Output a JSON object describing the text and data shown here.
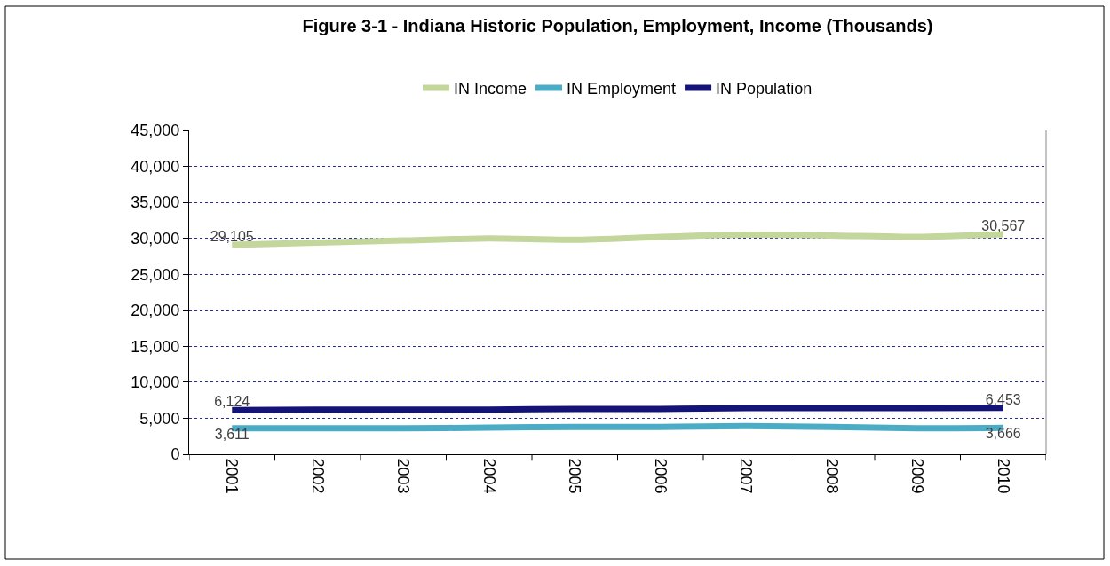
{
  "chart_data": {
    "type": "line",
    "title": "Figure 3-1 - Indiana Historic Population, Employment, Income (Thousands)",
    "categories": [
      "2001",
      "2002",
      "2003",
      "2004",
      "2005",
      "2006",
      "2007",
      "2008",
      "2009",
      "2010"
    ],
    "series": [
      {
        "name": "IN Income",
        "color": "#c3d69b",
        "values": [
          29105,
          29400,
          29700,
          30000,
          29800,
          30200,
          30500,
          30400,
          30200,
          30567
        ],
        "value_labels": [
          "29,105",
          null,
          null,
          null,
          null,
          null,
          null,
          null,
          null,
          "30,567"
        ]
      },
      {
        "name": "IN Employment",
        "color": "#4bacc6",
        "values": [
          3611,
          3600,
          3600,
          3700,
          3800,
          3800,
          3900,
          3800,
          3600,
          3666
        ],
        "value_labels": [
          "3,611",
          null,
          null,
          null,
          null,
          null,
          null,
          null,
          null,
          "3,666"
        ]
      },
      {
        "name": "IN Population",
        "color": "#141478",
        "values": [
          6124,
          6200,
          6200,
          6200,
          6300,
          6300,
          6400,
          6400,
          6400,
          6453
        ],
        "value_labels": [
          "6,124",
          null,
          null,
          null,
          null,
          null,
          null,
          null,
          null,
          "6,453"
        ]
      }
    ],
    "ylim": [
      0,
      45000
    ],
    "yticks": [
      {
        "value": 0,
        "label": "0"
      },
      {
        "value": 5000,
        "label": "5,000"
      },
      {
        "value": 10000,
        "label": "10,000"
      },
      {
        "value": 15000,
        "label": "15,000"
      },
      {
        "value": 20000,
        "label": "20,000"
      },
      {
        "value": 25000,
        "label": "25,000"
      },
      {
        "value": 30000,
        "label": "30,000"
      },
      {
        "value": 35000,
        "label": "35,000"
      },
      {
        "value": 40000,
        "label": "40,000"
      },
      {
        "value": 45000,
        "label": "45,000"
      }
    ],
    "grid": "y",
    "legend": "top",
    "marker": "none",
    "line_style": "solid"
  }
}
